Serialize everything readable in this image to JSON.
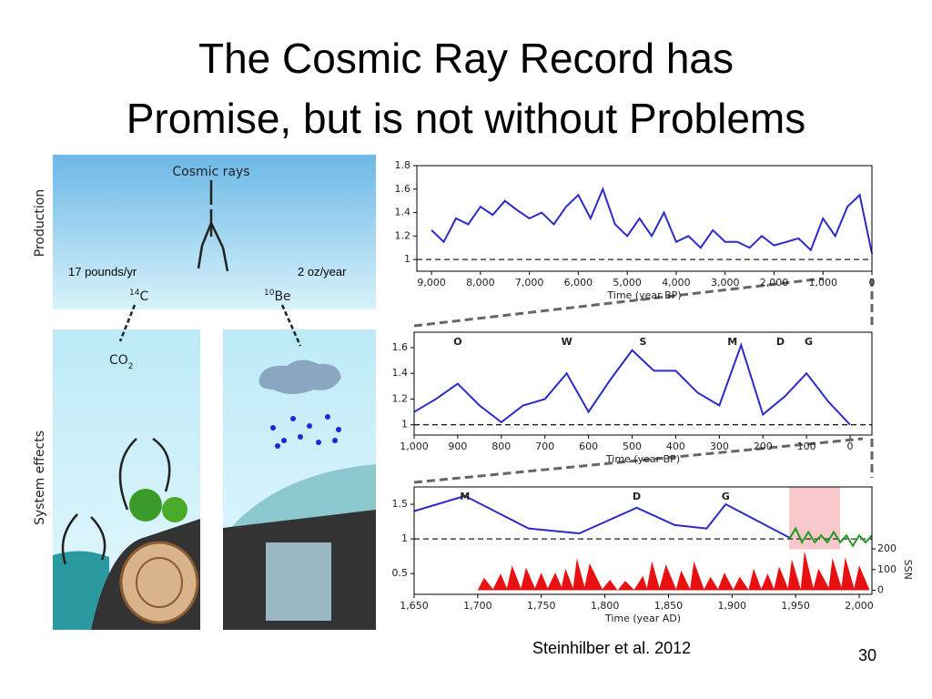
{
  "title": [
    "The Cosmic Ray Record has",
    "Promise, but is not without Problems"
  ],
  "diagram": {
    "production_label": "Production",
    "system_effects_label": "System effects",
    "cosmic_rays": "Cosmic rays",
    "c14_rate": "17 pounds/yr",
    "be10_rate": "2 oz/year",
    "c14": {
      "mass": "14",
      "symbol": "C"
    },
    "be10": {
      "mass": "10",
      "symbol": "Be"
    },
    "co2": {
      "base": "CO",
      "sub": "2"
    }
  },
  "citation": "Steinhilber et al. 2012",
  "page_number": "30",
  "chart_data": [
    {
      "type": "line",
      "xlabel": "Time (year BP)",
      "xlim": [
        9300,
        0
      ],
      "ylim": [
        0.9,
        1.8
      ],
      "xticks": [
        {
          "value": 9000,
          "label": "9,000"
        },
        {
          "value": 8000,
          "label": "8,000"
        },
        {
          "value": 7000,
          "label": "7,000"
        },
        {
          "value": 6000,
          "label": "6,000"
        },
        {
          "value": 5000,
          "label": "5,000"
        },
        {
          "value": 4000,
          "label": "4,000"
        },
        {
          "value": 3000,
          "label": "3,000"
        },
        {
          "value": 2000,
          "label": "2,000"
        },
        {
          "value": 1000,
          "label": "1,000"
        },
        0
      ],
      "yticks": [
        1,
        1.2,
        1.4,
        1.6,
        1.8
      ],
      "reference_line": 1,
      "series": [
        {
          "color": "#2b2bc8",
          "x": [
            9000,
            8750,
            8500,
            8250,
            8000,
            7750,
            7500,
            7250,
            7000,
            6750,
            6500,
            6250,
            6000,
            5750,
            5500,
            5250,
            5000,
            4750,
            4500,
            4250,
            4000,
            3750,
            3500,
            3250,
            3000,
            2750,
            2500,
            2250,
            2000,
            1750,
            1500,
            1250,
            1000,
            750,
            500,
            250,
            0
          ],
          "values": [
            1.25,
            1.15,
            1.35,
            1.3,
            1.45,
            1.38,
            1.5,
            1.42,
            1.35,
            1.4,
            1.3,
            1.45,
            1.55,
            1.35,
            1.6,
            1.3,
            1.2,
            1.35,
            1.2,
            1.4,
            1.15,
            1.2,
            1.1,
            1.25,
            1.15,
            1.15,
            1.1,
            1.2,
            1.12,
            1.15,
            1.18,
            1.08,
            1.35,
            1.2,
            1.45,
            1.55,
            1.05
          ]
        }
      ]
    },
    {
      "type": "line",
      "xlabel": "Time (year BP)",
      "xlim": [
        1000,
        -50
      ],
      "ylim": [
        0.92,
        1.72
      ],
      "xticks": [
        {
          "value": 1000,
          "label": "1,000"
        },
        900,
        800,
        700,
        600,
        500,
        400,
        300,
        200,
        100,
        0
      ],
      "yticks": [
        1,
        1.2,
        1.4,
        1.6
      ],
      "reference_line": 1,
      "annotations": [
        {
          "text": "O",
          "x": 900
        },
        {
          "text": "W",
          "x": 650
        },
        {
          "text": "S",
          "x": 475
        },
        {
          "text": "M",
          "x": 270
        },
        {
          "text": "D",
          "x": 160
        },
        {
          "text": "G",
          "x": 95
        }
      ],
      "series": [
        {
          "color": "#2b2bc8",
          "x": [
            1000,
            950,
            900,
            850,
            800,
            750,
            700,
            650,
            600,
            550,
            500,
            450,
            400,
            350,
            300,
            250,
            200,
            150,
            100,
            50,
            0
          ],
          "values": [
            1.1,
            1.2,
            1.32,
            1.15,
            1.02,
            1.15,
            1.2,
            1.4,
            1.1,
            1.35,
            1.58,
            1.42,
            1.42,
            1.25,
            1.15,
            1.62,
            1.08,
            1.22,
            1.4,
            1.18,
            1.0
          ]
        }
      ]
    },
    {
      "type": "line",
      "xlabel": "Time (year AD)",
      "xlim": [
        1650,
        2010
      ],
      "ylim": [
        0.2,
        1.75
      ],
      "xticks": [
        {
          "value": 1650,
          "label": "1,650"
        },
        {
          "value": 1700,
          "label": "1,700"
        },
        {
          "value": 1750,
          "label": "1,750"
        },
        {
          "value": 1800,
          "label": "1,800"
        },
        {
          "value": 1850,
          "label": "1,850"
        },
        {
          "value": 1900,
          "label": "1,900"
        },
        {
          "value": 1950,
          "label": "1,950"
        },
        {
          "value": 2000,
          "label": "2,000"
        }
      ],
      "yticks": [
        0.5,
        1,
        1.5
      ],
      "reference_line": 1,
      "y2label": "SSN",
      "y2lim": [
        -20,
        500
      ],
      "y2ticks": [
        0,
        100,
        200
      ],
      "highlight_x": [
        1945,
        1985
      ],
      "highlight_color": "#f8c8cc",
      "annotations": [
        {
          "text": "M",
          "x": 1690
        },
        {
          "text": "D",
          "x": 1825
        },
        {
          "text": "G",
          "x": 1895
        }
      ],
      "series": [
        {
          "color": "#2b2bc8",
          "x": [
            1650,
            1690,
            1740,
            1780,
            1825,
            1855,
            1880,
            1895,
            1945
          ],
          "values": [
            1.4,
            1.62,
            1.15,
            1.08,
            1.45,
            1.2,
            1.15,
            1.5,
            1.02
          ]
        },
        {
          "color": "#1e9a1e",
          "x": [
            1945,
            1950,
            1955,
            1960,
            1965,
            1970,
            1975,
            1980,
            1985,
            1990,
            1995,
            2000,
            2005,
            2010
          ],
          "values": [
            1.0,
            1.15,
            0.95,
            1.1,
            0.95,
            1.05,
            0.95,
            1.1,
            0.95,
            1.05,
            0.9,
            1.05,
            0.95,
            1.05
          ]
        },
        {
          "type": "area",
          "axis": "y2",
          "color": "#e81010",
          "x": [
            1700,
            1705,
            1712,
            1718,
            1723,
            1727,
            1734,
            1738,
            1745,
            1750,
            1755,
            1761,
            1766,
            1769,
            1775,
            1778,
            1784,
            1788,
            1798,
            1804,
            1810,
            1816,
            1823,
            1830,
            1833,
            1837,
            1843,
            1848,
            1856,
            1860,
            1867,
            1870,
            1878,
            1883,
            1889,
            1894,
            1901,
            1906,
            1913,
            1917,
            1923,
            1928,
            1933,
            1937,
            1944,
            1947,
            1954,
            1957,
            1964,
            1968,
            1976,
            1979,
            1986,
            1989,
            1996,
            2000,
            2008
          ],
          "values": [
            0,
            60,
            5,
            80,
            10,
            120,
            8,
            110,
            10,
            85,
            10,
            85,
            15,
            105,
            10,
            155,
            15,
            130,
            5,
            50,
            0,
            45,
            2,
            70,
            8,
            140,
            10,
            125,
            5,
            95,
            5,
            140,
            5,
            65,
            6,
            85,
            3,
            65,
            2,
            105,
            6,
            80,
            6,
            115,
            10,
            150,
            5,
            190,
            10,
            105,
            12,
            155,
            13,
            160,
            9,
            120,
            3
          ]
        }
      ]
    }
  ]
}
